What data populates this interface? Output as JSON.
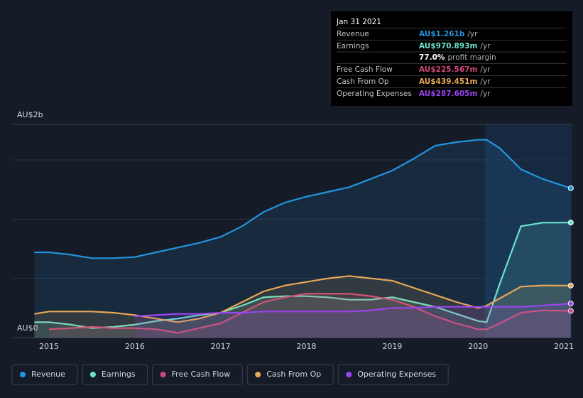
{
  "chart_data": {
    "type": "area-line",
    "x": [
      2014.83,
      2015,
      2015.25,
      2015.5,
      2015.75,
      2016,
      2016.25,
      2016.5,
      2016.75,
      2017,
      2017.25,
      2017.5,
      2017.75,
      2018,
      2018.25,
      2018.5,
      2018.75,
      2019,
      2019.25,
      2019.5,
      2019.75,
      2020,
      2020.1,
      2020.25,
      2020.5,
      2020.75,
      2021.08
    ],
    "series": [
      {
        "name": "Revenue",
        "color": "#2394df",
        "values": [
          0.72,
          0.72,
          0.7,
          0.67,
          0.67,
          0.68,
          0.72,
          0.76,
          0.8,
          0.85,
          0.94,
          1.06,
          1.14,
          1.19,
          1.23,
          1.27,
          1.34,
          1.41,
          1.51,
          1.62,
          1.65,
          1.67,
          1.67,
          1.6,
          1.42,
          1.34,
          1.261
        ]
      },
      {
        "name": "Earnings",
        "color": "#6ce3cc",
        "values": [
          0.13,
          0.13,
          0.11,
          0.08,
          0.09,
          0.11,
          0.14,
          0.16,
          0.19,
          0.21,
          0.27,
          0.34,
          0.35,
          0.35,
          0.34,
          0.32,
          0.32,
          0.34,
          0.3,
          0.26,
          0.2,
          0.14,
          0.13,
          0.45,
          0.94,
          0.97,
          0.971
        ]
      },
      {
        "name": "Free Cash Flow",
        "color": "#d0487d",
        "values": [
          null,
          0.07,
          0.08,
          0.09,
          0.08,
          0.08,
          0.07,
          0.04,
          0.08,
          0.12,
          0.21,
          0.3,
          0.34,
          0.37,
          0.37,
          0.37,
          0.35,
          0.32,
          0.26,
          0.18,
          0.12,
          0.07,
          0.07,
          0.12,
          0.21,
          0.23,
          0.2256
        ]
      },
      {
        "name": "Cash From Op",
        "color": "#e8a857",
        "values": [
          0.2,
          0.22,
          0.22,
          0.22,
          0.21,
          0.19,
          0.16,
          0.13,
          0.16,
          0.21,
          0.3,
          0.39,
          0.44,
          0.47,
          0.5,
          0.52,
          0.5,
          0.48,
          0.42,
          0.36,
          0.3,
          0.25,
          0.27,
          0.33,
          0.43,
          0.44,
          0.4395
        ]
      },
      {
        "name": "Operating Expenses",
        "color": "#9b45f0",
        "values": [
          null,
          null,
          null,
          null,
          null,
          0.18,
          0.19,
          0.2,
          0.2,
          0.21,
          0.21,
          0.22,
          0.22,
          0.22,
          0.22,
          0.22,
          0.23,
          0.25,
          0.25,
          0.26,
          0.26,
          0.26,
          0.26,
          0.26,
          0.26,
          0.27,
          0.2876
        ]
      }
    ],
    "xlim": [
      2014.57,
      2021.09
    ],
    "xticks": [
      2015,
      2016,
      2017,
      2018,
      2019,
      2020,
      2021
    ],
    "ylim": [
      0,
      1.8
    ],
    "yticks": [
      {
        "value": 0,
        "label": "AU$0"
      },
      {
        "value": 1.8,
        "label": "AU$2b"
      }
    ],
    "gridlines": [
      0.5,
      1,
      1.5
    ],
    "tooltip": {
      "date": "Jan 31 2021",
      "rows": [
        {
          "label": "Revenue",
          "value": "AU$1.261b",
          "unit": "/yr"
        },
        {
          "label": "Earnings",
          "value": "AU$970.893m",
          "unit": "/yr"
        },
        {
          "label": "Free Cash Flow",
          "value": "AU$225.567m",
          "unit": "/yr"
        },
        {
          "label": "Cash From Op",
          "value": "AU$439.451m",
          "unit": "/yr"
        },
        {
          "label": "Operating Expenses",
          "value": "AU$287.605m",
          "unit": "/yr"
        }
      ],
      "margin": {
        "value": "77.0%",
        "label": "profit margin"
      }
    }
  }
}
